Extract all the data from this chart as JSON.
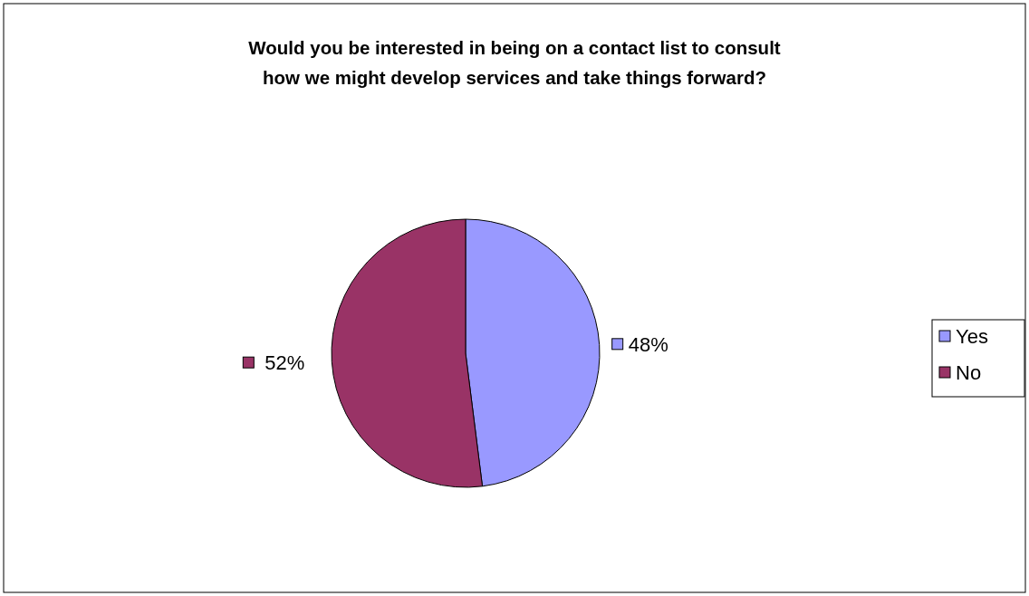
{
  "chart_data": {
    "type": "pie",
    "title": "Would you be interested in being on a contact list to consult how we might develop services and take things forward?",
    "categories": [
      "Yes",
      "No"
    ],
    "values": [
      48,
      52
    ],
    "colors": [
      "#9999ff",
      "#993366"
    ],
    "value_labels": [
      "48%",
      "52%"
    ],
    "legend": "right"
  }
}
